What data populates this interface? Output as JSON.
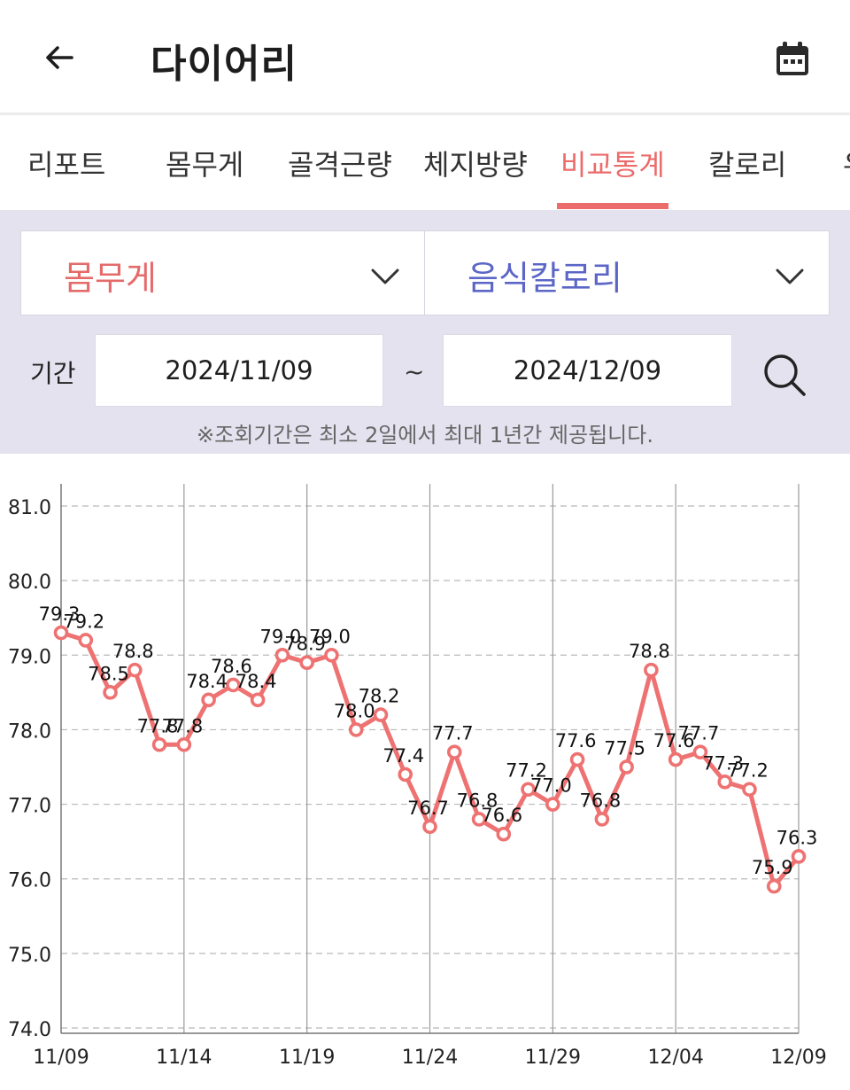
{
  "header": {
    "title": "다이어리",
    "back_icon": "arrow-left-icon",
    "calendar_icon": "calendar-icon"
  },
  "tabs": [
    {
      "label": "리포트",
      "active": false
    },
    {
      "label": "몸무게",
      "active": false
    },
    {
      "label": "골격근량",
      "active": false
    },
    {
      "label": "체지방량",
      "active": false
    },
    {
      "label": "비교통계",
      "active": true
    },
    {
      "label": "칼로리",
      "active": false
    },
    {
      "label": "유",
      "active": false
    }
  ],
  "filter": {
    "left_select": {
      "value": "몸무게",
      "icon": "chevron-down-icon"
    },
    "right_select": {
      "value": "음식칼로리",
      "icon": "chevron-down-icon"
    },
    "period_label": "기간",
    "date_from": "2024/11/09",
    "separator": "~",
    "date_to": "2024/12/09",
    "search_icon": "search-icon",
    "notice": "※조회기간은 최소 2일에서 최대 1년간 제공됩니다."
  },
  "colors": {
    "accent": "#ec6b6b",
    "secondary": "#5b66c7",
    "filter_bg": "#e4e2ef",
    "line": "#ee7272"
  },
  "chart_data": {
    "type": "line",
    "x_tick_labels": [
      "11/09",
      "11/14",
      "11/19",
      "11/24",
      "11/29",
      "12/04",
      "12/09"
    ],
    "y_tick_labels": [
      "81.0",
      "80.0",
      "79.0",
      "78.0",
      "77.0",
      "76.0",
      "75.0",
      "74.0"
    ],
    "ylim": [
      74.0,
      81.0
    ],
    "grid": true,
    "series": [
      {
        "values": [
          79.3,
          79.2,
          78.5,
          78.8,
          77.8,
          77.8,
          78.4,
          78.6,
          78.4,
          79.0,
          78.9,
          79.0,
          78.0,
          78.2,
          77.4,
          76.7,
          77.7,
          76.8,
          76.6,
          77.2,
          77.0,
          77.6,
          76.8,
          77.5,
          78.8,
          77.6,
          77.7,
          77.3,
          77.2,
          75.9,
          76.3
        ],
        "labels": [
          "79.3",
          "79.2",
          "78.5",
          "78.8",
          "77.8",
          "77.8",
          "78.4",
          "78.6",
          "78.4",
          "79.0",
          "78.9",
          "79.0",
          "78.0",
          "78.2",
          "77.4",
          "76.7",
          "77.7",
          "76.8",
          "76.6",
          "77.2",
          "77.0",
          "77.6",
          "76.8",
          "77.5",
          "78.8",
          "77.6",
          "77.7",
          "77.3",
          "77.2",
          "75.9",
          "76.3"
        ]
      }
    ]
  }
}
